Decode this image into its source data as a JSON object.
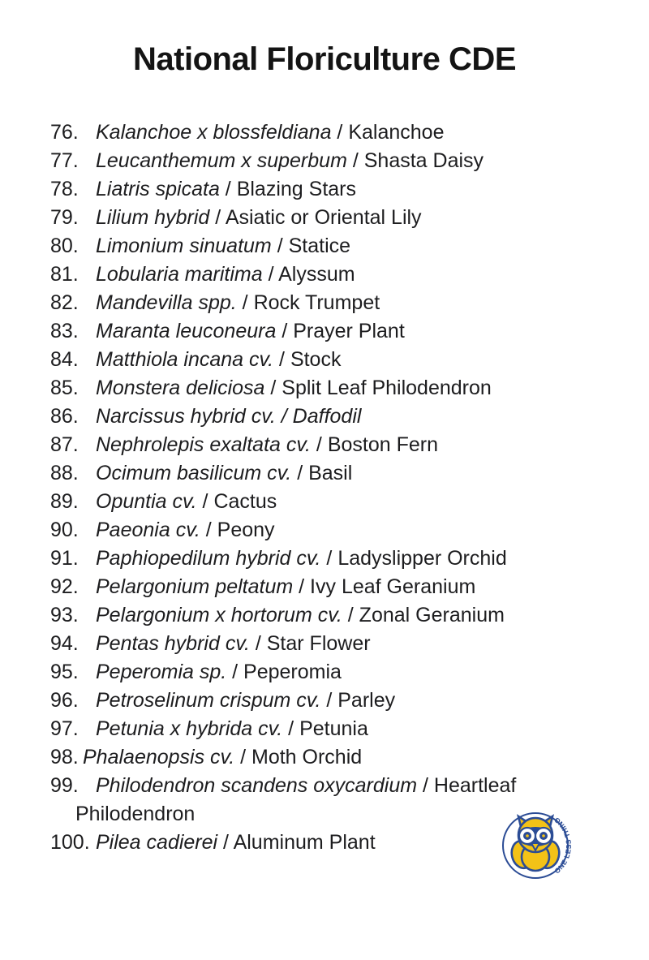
{
  "page": {
    "title": "National Floriculture CDE"
  },
  "list": {
    "separator": " / ",
    "items": [
      {
        "number": "76.",
        "latin": "Kalanchoe x blossfeldiana",
        "common": "Kalanchoe"
      },
      {
        "number": "77.",
        "latin": "Leucanthemum x superbum",
        "common": "Shasta Daisy"
      },
      {
        "number": "78.",
        "latin": "Liatris spicata",
        "common": "Blazing Stars"
      },
      {
        "number": "79.",
        "latin": "Lilium hybrid",
        "common": "Asiatic or Oriental Lily"
      },
      {
        "number": "80.",
        "latin": "Limonium sinuatum",
        "common": "Statice"
      },
      {
        "number": "81.",
        "latin": "Lobularia maritima",
        "common": "Alyssum"
      },
      {
        "number": "82.",
        "latin": "Mandevilla spp.",
        "common": "Rock Trumpet"
      },
      {
        "number": "83.",
        "latin": "Maranta leuconeura",
        "common": "Prayer Plant"
      },
      {
        "number": "84.",
        "latin": "Matthiola incana cv.",
        "common": "Stock"
      },
      {
        "number": "85.",
        "latin": "Monstera deliciosa",
        "common": "Split Leaf Philodendron"
      },
      {
        "number": "86.",
        "latin": "Narcissus hybrid cv.",
        "common": "Daffodil",
        "common_italic": true
      },
      {
        "number": "87.",
        "latin": "Nephrolepis exaltata cv.",
        "common": "Boston Fern"
      },
      {
        "number": "88.",
        "latin": "Ocimum basilicum cv.",
        "common": "Basil"
      },
      {
        "number": "89.",
        "latin": "Opuntia cv.",
        "common": "Cactus"
      },
      {
        "number": "90.",
        "latin": "Paeonia cv.",
        "common": "Peony"
      },
      {
        "number": "91.",
        "latin": "Paphiopedilum hybrid cv.",
        "common": "Ladyslipper Orchid"
      },
      {
        "number": "92.",
        "latin": "Pelargonium peltatum",
        "common": "Ivy Leaf Geranium"
      },
      {
        "number": "93.",
        "latin": "Pelargonium x hortorum cv.",
        "common": "Zonal Geranium"
      },
      {
        "number": "94.",
        "latin": "Pentas hybrid cv.",
        "common": "Star Flower"
      },
      {
        "number": "95.",
        "latin": "Peperomia sp.",
        "common": "Peperomia"
      },
      {
        "number": "96.",
        "latin": "Petroselinum crispum cv.",
        "common": "Parley"
      },
      {
        "number": "97.",
        "latin": "Petunia x hybrida cv.",
        "common": "Petunia"
      },
      {
        "number": "98.",
        "latin": "Phalaenopsis cv.",
        "common": "Moth Orchid",
        "tight": true
      },
      {
        "number": "99.",
        "latin": "Philodendron scandens oxycardium",
        "common": "Heartleaf Philodendron"
      },
      {
        "number": "100.",
        "latin": "Pilea cadierei",
        "common": "Aluminum Plant"
      }
    ]
  },
  "logo": {
    "arc_text": "ONE LESS THING",
    "colors": {
      "blue": "#2b4c95",
      "yellow": "#f3c217",
      "white": "#ffffff"
    }
  }
}
